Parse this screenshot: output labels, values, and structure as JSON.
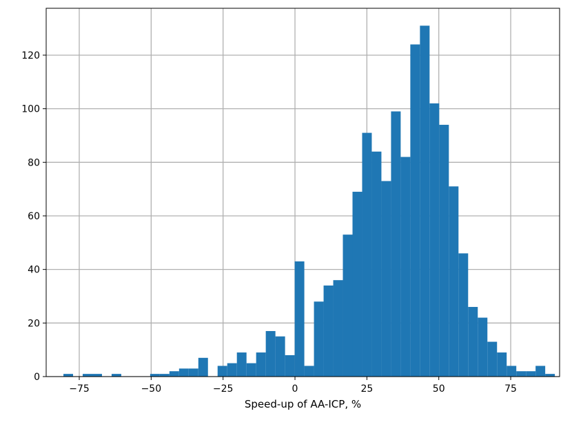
{
  "chart_data": {
    "type": "bar",
    "subtype": "histogram",
    "xlabel": "Speed-up of AA-ICP, %",
    "ylabel": "",
    "xlim": [
      -86.5,
      92
    ],
    "ylim": [
      0,
      137.5
    ],
    "xticks": [
      -75,
      -50,
      -25,
      0,
      25,
      50,
      75
    ],
    "xtick_labels": [
      "−75",
      "−50",
      "−25",
      "0",
      "25",
      "50",
      "75"
    ],
    "yticks": [
      0,
      20,
      40,
      60,
      80,
      100,
      120
    ],
    "ytick_labels": [
      "0",
      "20",
      "40",
      "60",
      "80",
      "100",
      "120"
    ],
    "grid": true,
    "bar_color": "#1f77b4",
    "bins": {
      "start": -80.5,
      "width": 3.35,
      "counts": [
        1,
        0,
        1,
        1,
        0,
        1,
        0,
        0,
        0,
        1,
        1,
        2,
        3,
        3,
        7,
        0,
        4,
        5,
        9,
        5,
        9,
        17,
        15,
        8,
        43,
        4,
        28,
        34,
        36,
        53,
        69,
        91,
        84,
        73,
        99,
        82,
        124,
        131,
        102,
        94,
        71,
        46,
        26,
        22,
        13,
        9,
        4,
        2,
        2,
        4,
        1
      ]
    }
  }
}
